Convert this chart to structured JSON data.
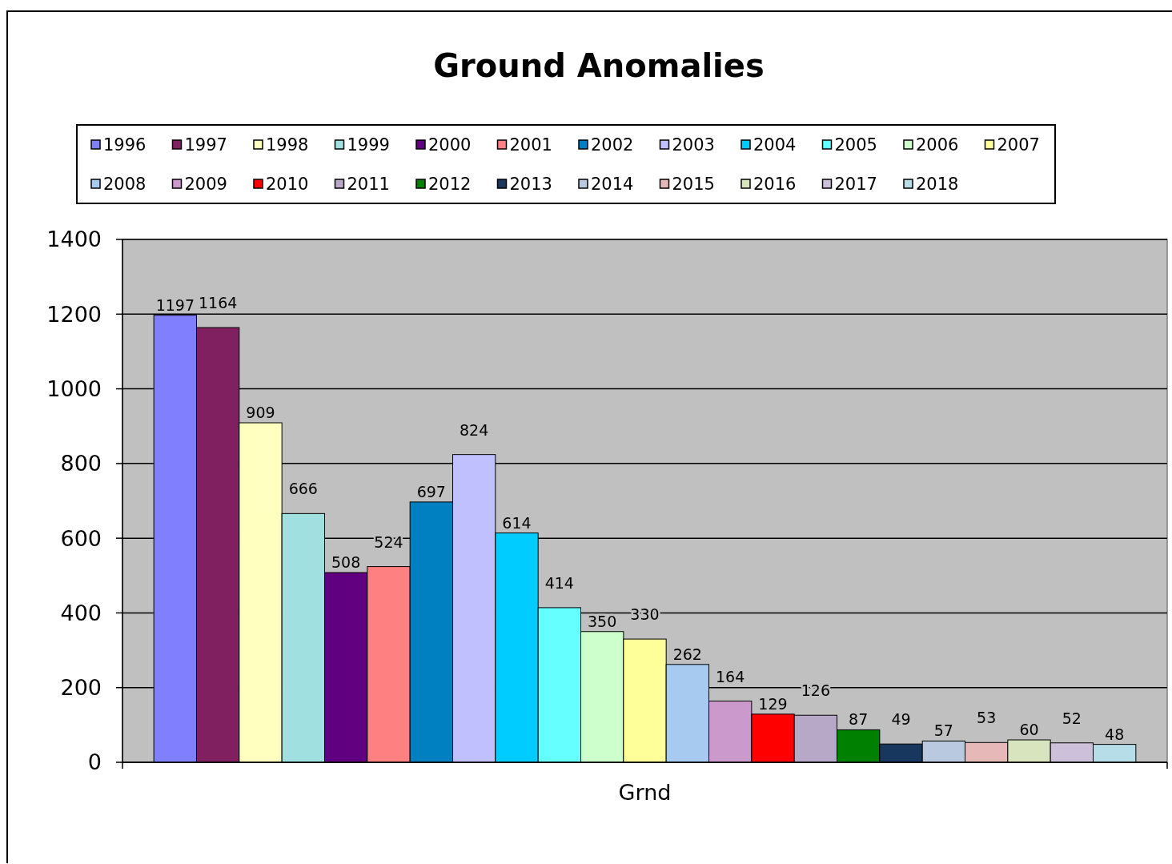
{
  "chart_data": {
    "type": "bar",
    "title": "Ground Anomalies",
    "categories": [
      "Grnd"
    ],
    "series": [
      {
        "name": "1996",
        "color": "#8080ff",
        "values": [
          1197
        ]
      },
      {
        "name": "1997",
        "color": "#802060",
        "values": [
          1164
        ]
      },
      {
        "name": "1998",
        "color": "#ffffc0",
        "values": [
          909
        ]
      },
      {
        "name": "1999",
        "color": "#a0e0e0",
        "values": [
          666
        ]
      },
      {
        "name": "2000",
        "color": "#600080",
        "values": [
          508
        ]
      },
      {
        "name": "2001",
        "color": "#ff8080",
        "values": [
          524
        ]
      },
      {
        "name": "2002",
        "color": "#0080c0",
        "values": [
          697
        ]
      },
      {
        "name": "2003",
        "color": "#c0c0ff",
        "values": [
          824
        ]
      },
      {
        "name": "2004",
        "color": "#00ccff",
        "values": [
          614
        ]
      },
      {
        "name": "2005",
        "color": "#66ffff",
        "values": [
          414
        ]
      },
      {
        "name": "2006",
        "color": "#ccffcc",
        "values": [
          350
        ]
      },
      {
        "name": "2007",
        "color": "#ffff99",
        "values": [
          330
        ]
      },
      {
        "name": "2008",
        "color": "#a6caf0",
        "values": [
          262
        ]
      },
      {
        "name": "2009",
        "color": "#cc99cc",
        "values": [
          164
        ]
      },
      {
        "name": "2010",
        "color": "#ff0000",
        "values": [
          129
        ]
      },
      {
        "name": "2011",
        "color": "#b8a8c8",
        "values": [
          126
        ]
      },
      {
        "name": "2012",
        "color": "#008000",
        "values": [
          87
        ]
      },
      {
        "name": "2013",
        "color": "#17375e",
        "values": [
          49
        ]
      },
      {
        "name": "2014",
        "color": "#b9c9e0",
        "values": [
          57
        ]
      },
      {
        "name": "2015",
        "color": "#e6b9b8",
        "values": [
          53
        ]
      },
      {
        "name": "2016",
        "color": "#d7e4bd",
        "values": [
          60
        ]
      },
      {
        "name": "2017",
        "color": "#ccc0da",
        "values": [
          52
        ]
      },
      {
        "name": "2018",
        "color": "#b7dde8",
        "values": [
          48
        ]
      }
    ],
    "ylim": [
      0,
      1400
    ],
    "yticks": [
      0,
      200,
      400,
      600,
      800,
      1000,
      1200,
      1400
    ],
    "grid": "y",
    "legend": "top",
    "data_labels": true
  }
}
